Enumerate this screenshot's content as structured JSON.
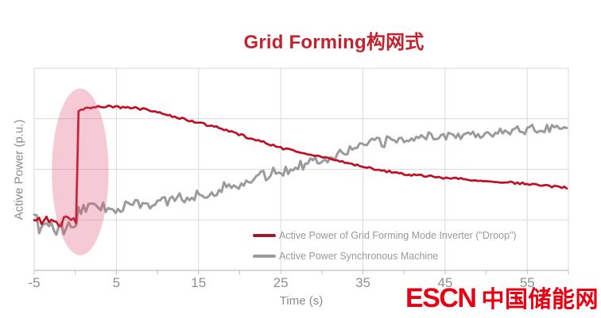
{
  "title": {
    "text": "Grid Forming构网式",
    "color": "#c2232f"
  },
  "watermark": {
    "latin": "ESCN",
    "chinese": "中国储能网",
    "color": "#e60012"
  },
  "axis_style": {
    "tick_label_color": "#8f8f8f",
    "axis_label_color": "#8a8a8a",
    "frame_color": "#d8d8d8",
    "baseline_color": "#bfbfbf",
    "grid_color": "#dadada"
  },
  "chart_data": {
    "type": "line",
    "title": "Grid Forming构网式",
    "xlabel": "Time (s)",
    "ylabel": "Active Power (p.u.)",
    "xlim": [
      -5,
      60
    ],
    "ylim": [
      0,
      4
    ],
    "y_axis_note": "y axis has no numeric tick labels; series values are in gridline units (0 = bottom axis, 1 unit = one gridline spacing)",
    "x_major_ticks": [
      -5,
      5,
      15,
      25,
      35,
      45,
      55
    ],
    "x_minor_tick_step": 5,
    "grid": {
      "vertical_at": [
        5,
        15,
        25,
        35,
        45,
        55
      ],
      "horizontal_at": [
        1,
        2,
        3
      ]
    },
    "legend_position": "inside-bottom-center",
    "series": [
      {
        "id": "droop-inverter",
        "name": "Active Power of Grid Forming Mode Inverter (\"Droop\")",
        "color": "#c00e23",
        "legend_color": "#9e1b2e",
        "width": 2.7,
        "noise": [
          {
            "t_max": 0.28,
            "amp": 6.5
          },
          {
            "t_max": 60,
            "amp": 1.4
          }
        ],
        "points": [
          [
            -5,
            1.02
          ],
          [
            -4,
            0.98
          ],
          [
            -3,
            1.0
          ],
          [
            -2,
            0.96
          ],
          [
            -1,
            0.99
          ],
          [
            0.2,
            1.02
          ],
          [
            0.3,
            3.16
          ],
          [
            1,
            3.2
          ],
          [
            2,
            3.23
          ],
          [
            3,
            3.25
          ],
          [
            5,
            3.23
          ],
          [
            7,
            3.22
          ],
          [
            9,
            3.17
          ],
          [
            11,
            3.08
          ],
          [
            13,
            3.0
          ],
          [
            15,
            2.92
          ],
          [
            17,
            2.84
          ],
          [
            19,
            2.74
          ],
          [
            21,
            2.63
          ],
          [
            23,
            2.53
          ],
          [
            25,
            2.42
          ],
          [
            27,
            2.36
          ],
          [
            29,
            2.28
          ],
          [
            31,
            2.21
          ],
          [
            33,
            2.13
          ],
          [
            35,
            2.05
          ],
          [
            37,
            1.99
          ],
          [
            39,
            1.93
          ],
          [
            41,
            1.89
          ],
          [
            43,
            1.86
          ],
          [
            45,
            1.83
          ],
          [
            47,
            1.81
          ],
          [
            49,
            1.78
          ],
          [
            51,
            1.76
          ],
          [
            53,
            1.74
          ],
          [
            55,
            1.71
          ],
          [
            57,
            1.68
          ],
          [
            59.8,
            1.63
          ]
        ]
      },
      {
        "id": "sync-machine",
        "name": "Active Power Synchronous Machine",
        "color": "#9b9b9b",
        "legend_color": "#9b9b9b",
        "width": 3,
        "noise": [
          {
            "t_max": 0.28,
            "amp": 13
          },
          {
            "t_max": 40,
            "amp": 7
          },
          {
            "t_max": 60,
            "amp": 6
          }
        ],
        "points": [
          [
            -5,
            0.9
          ],
          [
            -4,
            0.95
          ],
          [
            -3,
            0.84
          ],
          [
            -2,
            0.78
          ],
          [
            -1,
            0.85
          ],
          [
            0,
            0.75
          ],
          [
            0.3,
            1.2
          ],
          [
            1,
            1.24
          ],
          [
            3,
            1.25
          ],
          [
            5,
            1.24
          ],
          [
            7,
            1.28
          ],
          [
            9,
            1.32
          ],
          [
            11,
            1.37
          ],
          [
            13,
            1.43
          ],
          [
            15,
            1.5
          ],
          [
            17,
            1.58
          ],
          [
            19,
            1.68
          ],
          [
            21,
            1.77
          ],
          [
            23,
            1.87
          ],
          [
            25,
            1.97
          ],
          [
            27,
            2.07
          ],
          [
            29,
            2.16
          ],
          [
            31,
            2.26
          ],
          [
            33,
            2.37
          ],
          [
            35,
            2.46
          ],
          [
            37,
            2.53
          ],
          [
            39,
            2.58
          ],
          [
            41,
            2.62
          ],
          [
            43,
            2.65
          ],
          [
            45,
            2.67
          ],
          [
            47,
            2.69
          ],
          [
            49,
            2.71
          ],
          [
            51,
            2.73
          ],
          [
            53,
            2.76
          ],
          [
            55,
            2.79
          ],
          [
            57,
            2.82
          ],
          [
            59.8,
            2.86
          ]
        ]
      }
    ],
    "annotation": {
      "shape": "ellipse",
      "t_center": 0.6,
      "v_center": 1.95,
      "t_radius": 3.45,
      "v_radius": 1.65,
      "fill": "rgba(224,80,112,0.30)",
      "meaning": "highlight of the step response around t = 0 s"
    }
  }
}
